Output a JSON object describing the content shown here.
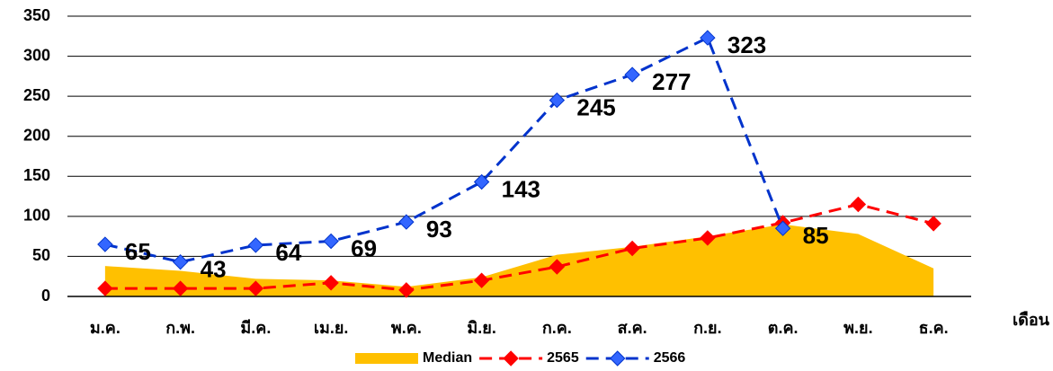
{
  "chart_data": {
    "type": "line",
    "x_label": "เดือน",
    "categories": [
      "ม.ค.",
      "ก.พ.",
      "มี.ค.",
      "เม.ย.",
      "พ.ค.",
      "มิ.ย.",
      "ก.ค.",
      "ส.ค.",
      "ก.ย.",
      "ต.ค.",
      "พ.ย.",
      "ธ.ค."
    ],
    "series": [
      {
        "name": "Median",
        "type": "area",
        "color": "#ffc000",
        "values": [
          38,
          32,
          22,
          20,
          12,
          24,
          52,
          62,
          75,
          90,
          78,
          35
        ]
      },
      {
        "name": "2565",
        "type": "line",
        "color": "#ff0000",
        "values": [
          10,
          10,
          10,
          17,
          8,
          20,
          37,
          60,
          73,
          92,
          115,
          91
        ]
      },
      {
        "name": "2566",
        "type": "line",
        "color": "#0033cc",
        "marker_color": "#3366ff",
        "data_labels": true,
        "values": [
          65,
          43,
          64,
          69,
          93,
          143,
          245,
          277,
          323,
          85,
          null,
          null
        ]
      }
    ],
    "ylim": [
      0,
      350
    ],
    "yticks": [
      0,
      50,
      100,
      150,
      200,
      250,
      300,
      350
    ],
    "grid": true,
    "legend": "bottom"
  }
}
